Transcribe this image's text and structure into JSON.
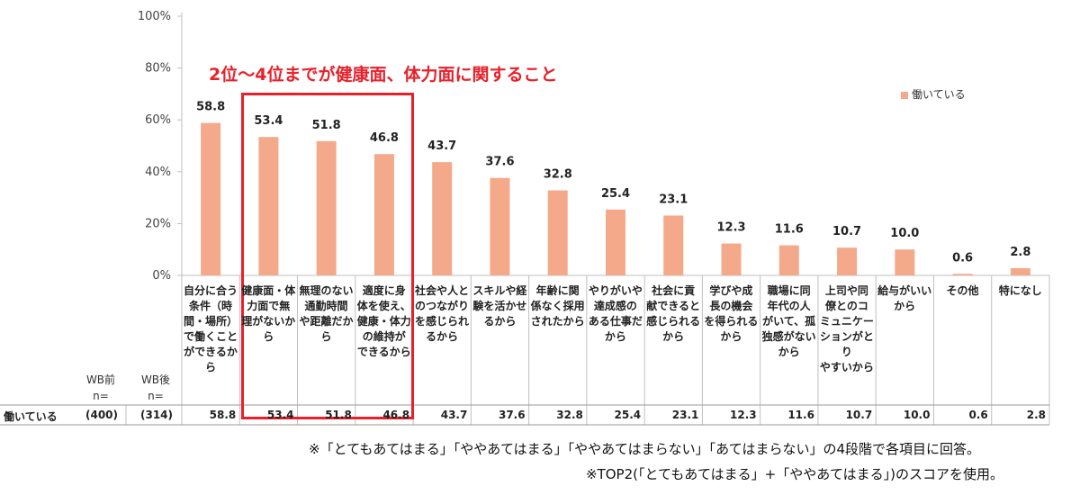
{
  "chart_data": {
    "type": "bar",
    "annotation": "2位～4位までが健康面、体力面に関すること",
    "yticks": [
      "0%",
      "20%",
      "40%",
      "60%",
      "80%",
      "100%"
    ],
    "ylim": [
      0,
      100
    ],
    "grid": false,
    "legend_position": "top-right",
    "series": [
      {
        "name": "働いている",
        "color": "#f4a98a",
        "values": [
          58.8,
          53.4,
          51.8,
          46.8,
          43.7,
          37.6,
          32.8,
          25.4,
          23.1,
          12.3,
          11.6,
          10.7,
          10.0,
          0.6,
          2.8
        ],
        "value_labels": [
          "58.8",
          "53.4",
          "51.8",
          "46.8",
          "43.7",
          "37.6",
          "32.8",
          "25.4",
          "23.1",
          "12.3",
          "11.6",
          "10.7",
          "10.0",
          "0.6",
          "2.8"
        ]
      }
    ],
    "categories": [
      "自分に合う\n条件（時\n間・場所）\nで働くこと\nができるか\nら",
      "健康面・体\n力面で無\n理がないか\nら",
      "無理のない\n通勤時間\nや距離だか\nら",
      "適度に身\n体を使え、\n健康・体力\nの維持が\nできるから",
      "社会や人と\nのつながり\nを感じられ\nるから",
      "スキルや経\n験を活かせ\nるから",
      "年齢に関\n係なく採用\nされたから",
      "やりがいや\n達成感の\nある仕事だ\nから",
      "社会に貢\n献できると\n感じられる\nから",
      "学びや成\n長の機会\nを得られる\nから",
      "職場に同\n年代の人\nがいて、孤\n独感がない\nから",
      "上司や同\n僚とのコ\nミュニケー\nションがとり\nやすいから",
      "給与がいい\nから",
      "その他",
      "特になし"
    ],
    "table": {
      "row_label": "働いている",
      "wb_before_header": "WB前",
      "wb_after_header": "WB後",
      "n_label": "n=",
      "wb_before_n": "(400)",
      "wb_after_n": "(314)"
    }
  },
  "notes": [
    "※「とてもあてはまる」「ややあてはまる」「ややあてはまらない」「あてはまらない」の4段階で各項目に回答。",
    "※TOP2(「とてもあてはまる」+「ややあてはまる」)のスコアを使用。"
  ]
}
